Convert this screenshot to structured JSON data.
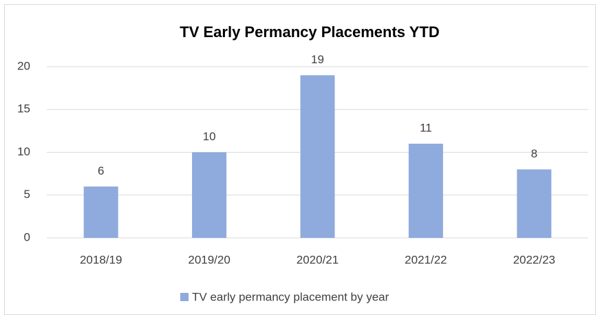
{
  "chart_data": {
    "type": "bar",
    "title": "TV Early Permancy Placements YTD",
    "categories": [
      "2018/19",
      "2019/20",
      "2020/21",
      "2021/22",
      "2022/23"
    ],
    "series": [
      {
        "name": "TV early permancy placement by year",
        "color": "#8faadc",
        "values": [
          6,
          10,
          19,
          11,
          8
        ]
      }
    ],
    "ylim": [
      0,
      20
    ],
    "yticks": [
      0,
      5,
      10,
      15,
      20
    ],
    "grid": true,
    "legend": "bottom"
  }
}
